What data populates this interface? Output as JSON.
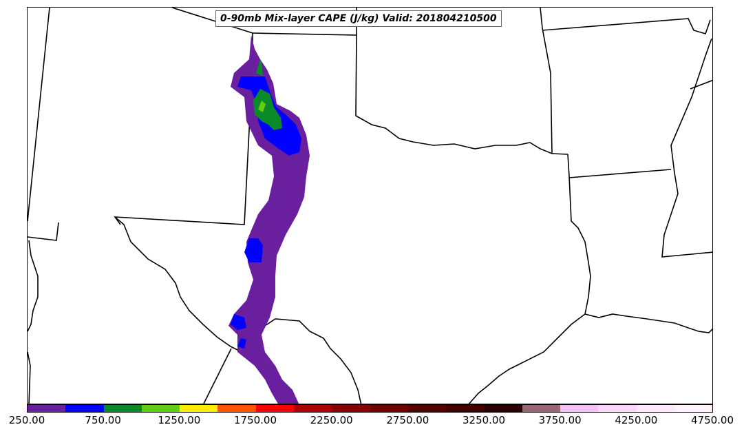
{
  "title": "0-90mb Mix-layer CAPE (J/kg) Valid: 201804210500",
  "colorbar": {
    "colors": [
      "#6a1f9e",
      "#0000ff",
      "#0b8a2a",
      "#66cc11",
      "#ffee00",
      "#ff5500",
      "#ff0000",
      "#aa0000",
      "#880000",
      "#700000",
      "#550000",
      "#400000",
      "#2a0000",
      "#996677",
      "#f5c2f5",
      "#fbd8fb",
      "#fde9fd",
      "#fff2fd"
    ],
    "tick_values": [
      "250.00",
      "750.00",
      "1250.00",
      "1750.00",
      "2250.00",
      "2750.00",
      "3250.00",
      "3750.00",
      "4250.00",
      "4750.00"
    ]
  },
  "chart_data": {
    "type": "heatmap",
    "title": "0-90mb Mix-layer CAPE (J/kg) Valid: 201804210500",
    "variable": "0-90mb Mix-layer CAPE",
    "units": "J/kg",
    "valid_time": "201804210500",
    "colorbar_range": [
      250,
      4750
    ],
    "colorbar_ticks": [
      250,
      750,
      1250,
      1750,
      2250,
      2750,
      3250,
      3750,
      4250,
      4750
    ],
    "levels": [
      250,
      500,
      750,
      1000,
      1250,
      1500,
      1750,
      2000,
      2250,
      2500,
      2750,
      3000,
      3250,
      3500,
      3750,
      4000,
      4250,
      4500,
      4750
    ],
    "max_contour_shown": 1250
  }
}
